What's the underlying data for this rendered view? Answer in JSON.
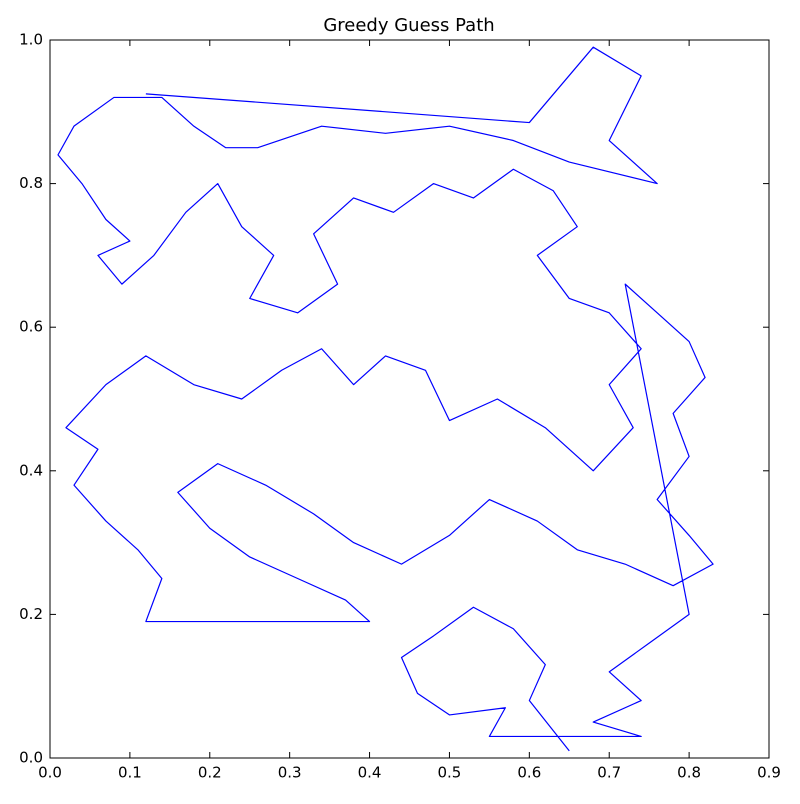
{
  "chart_data": {
    "type": "line",
    "title": "Greedy Guess Path",
    "x": [
      0.12,
      0.6,
      0.68,
      0.74,
      0.7,
      0.76,
      0.65,
      0.58,
      0.5,
      0.42,
      0.34,
      0.26,
      0.22,
      0.18,
      0.14,
      0.08,
      0.03,
      0.01,
      0.04,
      0.07,
      0.1,
      0.06,
      0.09,
      0.13,
      0.17,
      0.21,
      0.24,
      0.28,
      0.25,
      0.31,
      0.36,
      0.33,
      0.38,
      0.43,
      0.48,
      0.53,
      0.58,
      0.63,
      0.66,
      0.61,
      0.65,
      0.7,
      0.74,
      0.7,
      0.73,
      0.68,
      0.62,
      0.56,
      0.5,
      0.47,
      0.42,
      0.38,
      0.34,
      0.29,
      0.24,
      0.18,
      0.12,
      0.07,
      0.02,
      0.06,
      0.03,
      0.07,
      0.11,
      0.14,
      0.12,
      0.4,
      0.37,
      0.31,
      0.25,
      0.2,
      0.16,
      0.21,
      0.27,
      0.33,
      0.38,
      0.44,
      0.5,
      0.55,
      0.61,
      0.66,
      0.72,
      0.78,
      0.83,
      0.8,
      0.76,
      0.8,
      0.78,
      0.82,
      0.8,
      0.76,
      0.72,
      0.8,
      0.75,
      0.7,
      0.74,
      0.68,
      0.74,
      0.55,
      0.57,
      0.5,
      0.46,
      0.44,
      0.48,
      0.53,
      0.58,
      0.62,
      0.6,
      0.65
    ],
    "series": [
      {
        "color": "#0000ff",
        "values": [
          0.925,
          0.885,
          0.99,
          0.95,
          0.86,
          0.8,
          0.83,
          0.86,
          0.88,
          0.87,
          0.88,
          0.85,
          0.85,
          0.88,
          0.92,
          0.92,
          0.88,
          0.84,
          0.8,
          0.75,
          0.72,
          0.7,
          0.66,
          0.7,
          0.76,
          0.8,
          0.74,
          0.7,
          0.64,
          0.62,
          0.66,
          0.73,
          0.78,
          0.76,
          0.8,
          0.78,
          0.82,
          0.79,
          0.74,
          0.7,
          0.64,
          0.62,
          0.57,
          0.52,
          0.46,
          0.4,
          0.46,
          0.5,
          0.47,
          0.54,
          0.56,
          0.52,
          0.57,
          0.54,
          0.5,
          0.52,
          0.56,
          0.52,
          0.46,
          0.43,
          0.38,
          0.33,
          0.29,
          0.25,
          0.19,
          0.19,
          0.22,
          0.25,
          0.28,
          0.32,
          0.37,
          0.41,
          0.38,
          0.34,
          0.3,
          0.27,
          0.31,
          0.36,
          0.33,
          0.29,
          0.27,
          0.24,
          0.27,
          0.31,
          0.36,
          0.42,
          0.48,
          0.53,
          0.58,
          0.62,
          0.66,
          0.2,
          0.16,
          0.12,
          0.08,
          0.05,
          0.03,
          0.03,
          0.07,
          0.06,
          0.09,
          0.14,
          0.17,
          0.21,
          0.18,
          0.13,
          0.08,
          0.01
        ]
      }
    ],
    "xlim": [
      0,
      0.9
    ],
    "xticks": [
      {
        "value": 0,
        "label": "0.0"
      },
      0.1,
      0.2,
      0.3,
      0.4,
      0.5,
      0.6,
      0.7,
      0.8,
      0.9
    ],
    "ylim": [
      0,
      1
    ],
    "yticks": [
      {
        "value": 0,
        "label": "0.0"
      },
      0.2,
      0.4,
      0.6,
      0.8,
      {
        "value": 1,
        "label": "1.0"
      }
    ]
  }
}
